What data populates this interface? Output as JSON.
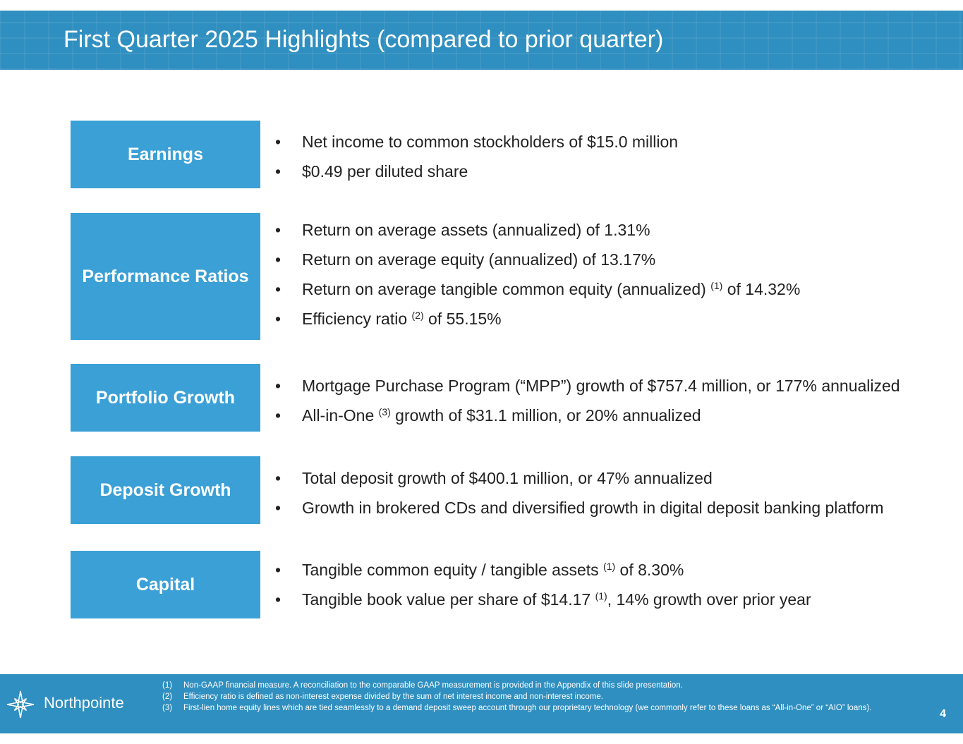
{
  "header": {
    "title": "First Quarter 2025 Highlights (compared to prior quarter)"
  },
  "sections": [
    {
      "label": "Earnings",
      "bullets": [
        {
          "text": "Net income to common stockholders of $15.0 million"
        },
        {
          "text": "$0.49 per diluted share"
        }
      ]
    },
    {
      "label": "Performance Ratios",
      "bullets": [
        {
          "text": "Return on average assets (annualized) of 1.31%"
        },
        {
          "text": "Return on average equity (annualized) of 13.17%"
        },
        {
          "pre": "Return on average tangible common equity (annualized) ",
          "sup": "(1)",
          "post": " of 14.32%"
        },
        {
          "pre": "Efficiency ratio ",
          "sup": "(2)",
          "post": " of 55.15%"
        }
      ]
    },
    {
      "label": "Portfolio Growth",
      "bullets": [
        {
          "text": "Mortgage Purchase Program (“MPP”) growth of $757.4 million, or 177% annualized"
        },
        {
          "pre": "All-in-One ",
          "sup": "(3)",
          "post": " growth of $31.1 million, or 20% annualized"
        }
      ]
    },
    {
      "label": "Deposit Growth",
      "bullets": [
        {
          "text": "Total deposit growth of $400.1 million, or 47% annualized"
        },
        {
          "text": "Growth in brokered CDs and diversified growth in digital deposit banking platform"
        }
      ]
    },
    {
      "label": "Capital",
      "bullets": [
        {
          "pre": "Tangible common equity / tangible assets ",
          "sup": "(1)",
          "post": " of 8.30%"
        },
        {
          "pre": "Tangible book value per share of $14.17 ",
          "sup": "(1)",
          "post": ", 14% growth over prior year"
        }
      ]
    }
  ],
  "bullet_glyph": "•",
  "footer": {
    "logo_text": "Northpointe",
    "logo_icon": "compass-star-icon",
    "notes": [
      {
        "num": "(1)",
        "text": "Non-GAAP financial measure. A reconciliation to the comparable GAAP measurement is provided in the Appendix of this slide presentation."
      },
      {
        "num": "(2)",
        "text": "Efficiency ratio is defined as non-interest expense divided by the sum of net interest income and non-interest income."
      },
      {
        "num": "(3)",
        "text": "First-lien home equity lines which are tied seamlessly to a demand deposit sweep account through our proprietary technology (we commonly refer to these loans as “All-in-One” or “AIO” loans)."
      }
    ],
    "page_number": "4"
  },
  "colors": {
    "header_bg": "#2f8fc0",
    "box_bg": "#3aa0d6",
    "footer_bg": "#2f8fc0"
  }
}
